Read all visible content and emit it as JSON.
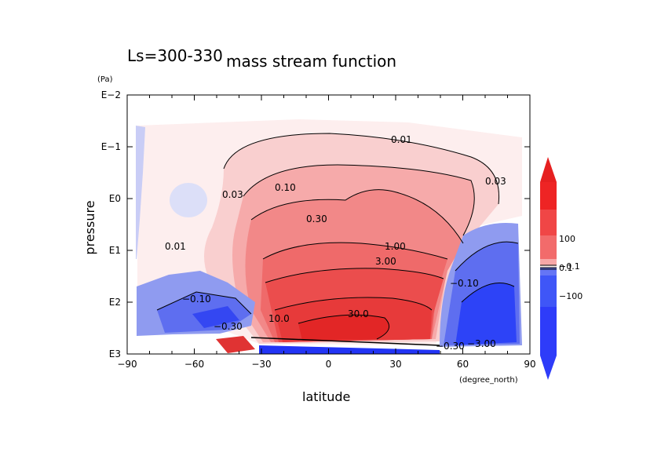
{
  "chart_data": {
    "type": "contour",
    "top_left_label": "Ls=300-330",
    "title": "mass stream function",
    "xlabel": "latitude",
    "x_unit": "(degree_north)",
    "ylabel": "pressure",
    "y_unit": "(Pa)",
    "xlim": [
      -90,
      90
    ],
    "x_ticks": [
      -90,
      -60,
      -30,
      0,
      30,
      60,
      90
    ],
    "x_tick_labels": [
      "−90",
      "−60",
      "−30",
      "0",
      "30",
      "60",
      "90"
    ],
    "y_scale": "log",
    "y_reversed": true,
    "ylim_pa": [
      0.01,
      1000
    ],
    "y_tick_labels": [
      "E−2",
      "E−1",
      "E0",
      "E1",
      "E2",
      "E3"
    ],
    "contour_labels": [
      "0.01",
      "0.03",
      "0.10",
      "0.30",
      "1.00",
      "3.00",
      "10.0",
      "30.0",
      "0.03",
      "0.01",
      "−0.10",
      "−0.30",
      "−3.00",
      "−0.30",
      "−0.10"
    ],
    "colorbar": {
      "tick_labels": [
        "100",
        "0.1",
        "−0.1",
        "−100"
      ],
      "positive_color": "#ff2a2a",
      "negative_color": "#1f3cff",
      "near_zero_color": "#fff0f0"
    },
    "features": {
      "main_cell": {
        "sign": "positive",
        "max_label": "30.0",
        "center_lat": 20,
        "center_pressure_pa": 300
      },
      "southern_cell": {
        "sign": "negative",
        "min_label": "−0.30",
        "center_lat": -60
      },
      "northern_cell": {
        "sign": "negative",
        "min_label": "−3.00",
        "center_lat": 65
      }
    }
  }
}
